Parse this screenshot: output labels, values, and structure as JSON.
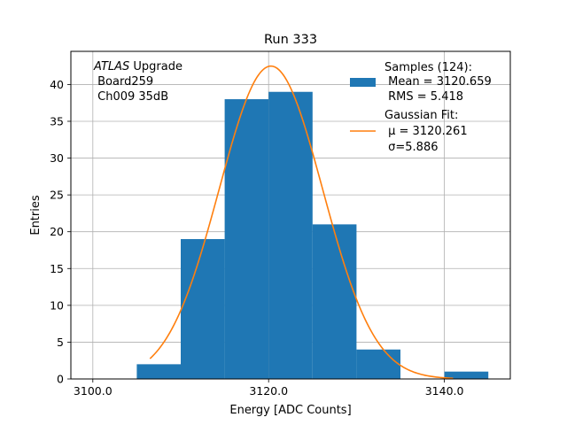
{
  "chart_data": {
    "type": "bar",
    "title": "Run 333",
    "xlabel": "Energy [ADC Counts]",
    "ylabel": "Entries",
    "xlim": [
      3097.5,
      3147.5
    ],
    "ylim": [
      0,
      44.5
    ],
    "xticks": [
      3100.0,
      3120.0,
      3140.0
    ],
    "xtick_labels": [
      "3100.0",
      "3120.0",
      "3140.0"
    ],
    "yticks": [
      0,
      5,
      10,
      15,
      20,
      25,
      30,
      35,
      40
    ],
    "grid": true,
    "annotation": {
      "italic": "ATLAS",
      "rest": " Upgrade",
      "line2": " Board259",
      "line3": " Ch009 35dB"
    },
    "histogram": {
      "name": "Samples (124):",
      "color": "#1f77b4",
      "bins": [
        {
          "x0": 3105,
          "x1": 3110,
          "count": 2
        },
        {
          "x0": 3110,
          "x1": 3115,
          "count": 19
        },
        {
          "x0": 3115,
          "x1": 3120,
          "count": 38
        },
        {
          "x0": 3120,
          "x1": 3125,
          "count": 39
        },
        {
          "x0": 3125,
          "x1": 3130,
          "count": 21
        },
        {
          "x0": 3130,
          "x1": 3135,
          "count": 4
        },
        {
          "x0": 3135,
          "x1": 3140,
          "count": 0
        },
        {
          "x0": 3140,
          "x1": 3145,
          "count": 1
        }
      ]
    },
    "fit": {
      "name": "Gaussian Fit:",
      "color": "#ff7f0e",
      "mu": 3120.261,
      "sigma": 5.886,
      "amplitude": 42.5,
      "x_range": [
        3106.5,
        3141.0
      ]
    },
    "legend": {
      "position": "top-right",
      "samples_lines": [
        "Samples (124):",
        " Mean = 3120.659",
        " RMS = 5.418"
      ],
      "fit_lines": [
        "Gaussian Fit:",
        " μ = 3120.261",
        " σ=5.886"
      ]
    }
  }
}
